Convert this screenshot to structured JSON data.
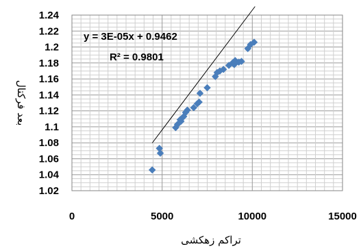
{
  "chart_data": {
    "type": "scatter",
    "title": "",
    "xlabel": "تراکم زهکشی",
    "ylabel": "بعد فرکتال",
    "xlim": [
      0,
      15000
    ],
    "ylim": [
      1.02,
      1.24
    ],
    "x_ticks": [
      "0",
      "5000",
      "10000",
      "15000"
    ],
    "y_ticks": [
      "1.02",
      "1.04",
      "1.06",
      "1.08",
      "1.1",
      "1.12",
      "1.14",
      "1.16",
      "1.18",
      "1.2",
      "1.22",
      "1.24"
    ],
    "grid": true,
    "legend": "none",
    "marker_color": "#4A7EBB",
    "series": [
      {
        "marker": "diamond",
        "points": [
          [
            4450,
            1.046
          ],
          [
            4850,
            1.073
          ],
          [
            4900,
            1.067
          ],
          [
            5750,
            1.099
          ],
          [
            5850,
            1.103
          ],
          [
            6000,
            1.109
          ],
          [
            6050,
            1.107
          ],
          [
            6200,
            1.113
          ],
          [
            6300,
            1.118
          ],
          [
            6400,
            1.121
          ],
          [
            6750,
            1.124
          ],
          [
            6950,
            1.129
          ],
          [
            7050,
            1.131
          ],
          [
            7100,
            1.142
          ],
          [
            7500,
            1.149
          ],
          [
            7950,
            1.163
          ],
          [
            8050,
            1.168
          ],
          [
            8200,
            1.17
          ],
          [
            8400,
            1.172
          ],
          [
            8700,
            1.177
          ],
          [
            8900,
            1.18
          ],
          [
            9000,
            1.178
          ],
          [
            9050,
            1.183
          ],
          [
            9250,
            1.181
          ],
          [
            9400,
            1.182
          ],
          [
            9750,
            1.198
          ],
          [
            9900,
            1.203
          ],
          [
            10100,
            1.206
          ]
        ]
      }
    ],
    "trendline": {
      "type": "linear",
      "slope": 3e-05,
      "intercept": 0.9462,
      "x_range": [
        4450,
        10150
      ],
      "equation_label": "y = 3E-05x + 0.9462",
      "r2_label": "R² = 0.9801"
    }
  }
}
